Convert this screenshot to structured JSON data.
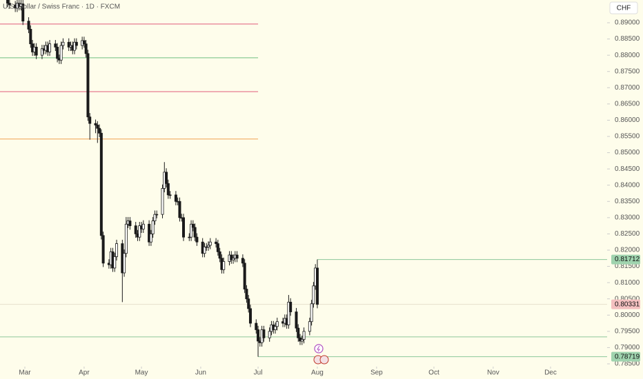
{
  "chart_data": {
    "type": "candlestick",
    "title": "U.S. Dollar / Swiss Franc · 1D · FXCM",
    "currency": "CHF",
    "background": "#fefdeb",
    "up_color": "#ffffff",
    "down_color": "#1a1a1a",
    "xlim": [
      47.0,
      364.6
    ],
    "xticks": [
      {
        "value": 60,
        "label": "Mar"
      },
      {
        "value": 91,
        "label": "Apr"
      },
      {
        "value": 121,
        "label": "May"
      },
      {
        "value": 152,
        "label": "Jun"
      },
      {
        "value": 182,
        "label": "Jul"
      },
      {
        "value": 213,
        "label": "Aug"
      },
      {
        "value": 244,
        "label": "Sep"
      },
      {
        "value": 274,
        "label": "Oct"
      },
      {
        "value": 305,
        "label": "Nov"
      },
      {
        "value": 335,
        "label": "Dec"
      }
    ],
    "ylim": [
      0.78415,
      0.897
    ],
    "yticks": [
      {
        "value": 0.89,
        "label": "0.89000"
      },
      {
        "value": 0.885,
        "label": "0.88500"
      },
      {
        "value": 0.88,
        "label": "0.88000"
      },
      {
        "value": 0.875,
        "label": "0.87500"
      },
      {
        "value": 0.87,
        "label": "0.87000"
      },
      {
        "value": 0.865,
        "label": "0.86500"
      },
      {
        "value": 0.86,
        "label": "0.86000"
      },
      {
        "value": 0.855,
        "label": "0.85500"
      },
      {
        "value": 0.85,
        "label": "0.85000"
      },
      {
        "value": 0.845,
        "label": "0.84500"
      },
      {
        "value": 0.84,
        "label": "0.84000"
      },
      {
        "value": 0.835,
        "label": "0.83500"
      },
      {
        "value": 0.83,
        "label": "0.83000"
      },
      {
        "value": 0.825,
        "label": "0.82500"
      },
      {
        "value": 0.82,
        "label": "0.82000"
      },
      {
        "value": 0.815,
        "label": "0.81500"
      },
      {
        "value": 0.81,
        "label": "0.81000"
      },
      {
        "value": 0.805,
        "label": "0.80500"
      },
      {
        "value": 0.8,
        "label": "0.80000"
      },
      {
        "value": 0.795,
        "label": "0.79500"
      },
      {
        "value": 0.79,
        "label": "0.79000"
      },
      {
        "value": 0.785,
        "label": "0.78500"
      }
    ],
    "x": [
      51,
      52,
      55,
      56,
      57,
      58,
      59,
      62,
      63,
      64,
      65,
      66,
      69,
      70,
      71,
      72,
      73,
      76,
      77,
      78,
      79,
      80,
      83,
      84,
      85,
      86,
      87,
      90,
      91,
      92,
      93,
      94,
      97,
      98,
      99,
      100,
      101,
      104,
      105,
      106,
      107,
      108,
      111,
      112,
      113,
      114,
      115,
      118,
      119,
      120,
      121,
      122,
      125,
      126,
      127,
      128,
      129,
      132,
      133,
      134,
      135,
      136,
      139,
      140,
      141,
      142,
      143,
      146,
      147,
      148,
      149,
      150,
      153,
      154,
      155,
      156,
      157,
      160,
      161,
      162,
      163,
      164,
      167,
      168,
      169,
      170,
      171,
      174,
      175,
      176,
      177,
      178,
      181,
      182,
      183,
      184,
      185,
      188,
      189,
      190,
      191,
      192,
      195,
      196,
      197,
      198,
      199,
      202,
      203,
      204,
      205,
      206,
      209,
      210,
      211,
      212,
      213
    ],
    "open": [
      0.897,
      0.896,
      0.8955,
      0.8945,
      0.896,
      0.895,
      0.8958,
      0.8905,
      0.888,
      0.8835,
      0.881,
      0.8825,
      0.88,
      0.882,
      0.8815,
      0.883,
      0.881,
      0.8835,
      0.8825,
      0.879,
      0.8785,
      0.883,
      0.884,
      0.8825,
      0.883,
      0.8815,
      0.884,
      0.883,
      0.8845,
      0.8835,
      0.8805,
      0.861,
      0.859,
      0.8585,
      0.8575,
      0.856,
      0.8245,
      0.816,
      0.8155,
      0.8195,
      0.8145,
      0.818,
      0.822,
      0.813,
      0.819,
      0.828,
      0.829,
      0.8275,
      0.825,
      0.824,
      0.8275,
      0.8265,
      0.828,
      0.8225,
      0.825,
      0.829,
      0.831,
      0.831,
      0.839,
      0.844,
      0.8405,
      0.837,
      0.837,
      0.835,
      0.835,
      0.83,
      0.83,
      0.824,
      0.824,
      0.828,
      0.827,
      0.824,
      0.8225,
      0.819,
      0.821,
      0.821,
      0.8215,
      0.8225,
      0.822,
      0.8195,
      0.8175,
      0.814,
      0.8165,
      0.8185,
      0.817,
      0.8175,
      0.8185,
      0.8175,
      0.816,
      0.808,
      0.805,
      0.802,
      0.7975,
      0.7955,
      0.792,
      0.7915,
      0.7955,
      0.793,
      0.795,
      0.797,
      0.7955,
      0.7965,
      0.798,
      0.7975,
      0.799,
      0.797,
      0.804,
      0.801,
      0.796,
      0.793,
      0.792,
      0.7925,
      0.795,
      0.798,
      0.8035,
      0.809,
      0.8145
    ],
    "high": [
      0.8982,
      0.8972,
      0.8967,
      0.8972,
      0.8972,
      0.897,
      0.897,
      0.8917,
      0.8892,
      0.8847,
      0.8837,
      0.8837,
      0.8832,
      0.8832,
      0.8842,
      0.8842,
      0.8847,
      0.8847,
      0.8837,
      0.8802,
      0.8842,
      0.8852,
      0.8852,
      0.8842,
      0.8842,
      0.8852,
      0.8852,
      0.8857,
      0.8857,
      0.8847,
      0.8817,
      0.8622,
      0.8602,
      0.8597,
      0.8587,
      0.8572,
      0.8257,
      0.8172,
      0.8207,
      0.8207,
      0.8192,
      0.8232,
      0.8232,
      0.8202,
      0.8302,
      0.8302,
      0.8302,
      0.8287,
      0.8262,
      0.8287,
      0.8287,
      0.8292,
      0.8292,
      0.8262,
      0.8302,
      0.8322,
      0.8322,
      0.8402,
      0.8471,
      0.8452,
      0.8417,
      0.8382,
      0.8382,
      0.8362,
      0.8362,
      0.8312,
      0.8312,
      0.8252,
      0.8292,
      0.8292,
      0.8282,
      0.8252,
      0.8237,
      0.8222,
      0.8222,
      0.8227,
      0.8237,
      0.8237,
      0.8232,
      0.8207,
      0.8187,
      0.8177,
      0.8197,
      0.8197,
      0.8187,
      0.8197,
      0.8197,
      0.8187,
      0.8172,
      0.8092,
      0.8062,
      0.8032,
      0.7987,
      0.7967,
      0.7932,
      0.7967,
      0.7967,
      0.7962,
      0.7982,
      0.7982,
      0.7977,
      0.7992,
      0.7992,
      0.8002,
      0.8002,
      0.8062,
      0.8052,
      0.8022,
      0.7972,
      0.7942,
      0.7937,
      0.7962,
      0.7992,
      0.8047,
      0.8102,
      0.8157,
      0.81712
    ],
    "low": [
      0.8948,
      0.8943,
      0.8933,
      0.8933,
      0.8938,
      0.8938,
      0.8893,
      0.8868,
      0.8823,
      0.8798,
      0.8798,
      0.8788,
      0.8788,
      0.8803,
      0.8803,
      0.8798,
      0.8798,
      0.8813,
      0.8778,
      0.8773,
      0.8773,
      0.8818,
      0.8813,
      0.8813,
      0.8803,
      0.8803,
      0.8818,
      0.8818,
      0.8823,
      0.8793,
      0.8598,
      0.854,
      0.856,
      0.853,
      0.8548,
      0.8233,
      0.8148,
      0.8143,
      0.8143,
      0.8133,
      0.8133,
      0.8168,
      0.804,
      0.8118,
      0.8178,
      0.8268,
      0.8263,
      0.8238,
      0.8228,
      0.8228,
      0.8253,
      0.8253,
      0.8213,
      0.8213,
      0.8238,
      0.8278,
      0.8298,
      0.8298,
      0.8378,
      0.8393,
      0.8358,
      0.8358,
      0.8338,
      0.8338,
      0.8288,
      0.8288,
      0.8228,
      0.8228,
      0.8228,
      0.8258,
      0.8228,
      0.8213,
      0.8178,
      0.8178,
      0.8198,
      0.8198,
      0.8203,
      0.8208,
      0.8183,
      0.8163,
      0.8128,
      0.8128,
      0.8153,
      0.8158,
      0.8158,
      0.8163,
      0.8163,
      0.8148,
      0.8068,
      0.8038,
      0.8008,
      0.7963,
      0.7943,
      0.78719,
      0.7903,
      0.7903,
      0.7918,
      0.7918,
      0.7938,
      0.7943,
      0.7943,
      0.7953,
      0.7963,
      0.7963,
      0.7958,
      0.7958,
      0.7998,
      0.7948,
      0.7918,
      0.7908,
      0.7908,
      0.7913,
      0.7938,
      0.7968,
      0.8023,
      0.8078,
      0.8021
    ],
    "close": [
      0.896,
      0.8955,
      0.8945,
      0.896,
      0.895,
      0.8958,
      0.8905,
      0.888,
      0.8835,
      0.881,
      0.8825,
      0.88,
      0.882,
      0.8815,
      0.883,
      0.881,
      0.8835,
      0.8825,
      0.879,
      0.8785,
      0.883,
      0.884,
      0.8825,
      0.883,
      0.8815,
      0.884,
      0.883,
      0.8845,
      0.8835,
      0.8805,
      0.861,
      0.859,
      0.8585,
      0.8575,
      0.856,
      0.8245,
      0.816,
      0.8155,
      0.8195,
      0.8145,
      0.818,
      0.822,
      0.813,
      0.819,
      0.828,
      0.829,
      0.8275,
      0.825,
      0.824,
      0.8275,
      0.8265,
      0.828,
      0.8225,
      0.825,
      0.829,
      0.831,
      0.831,
      0.839,
      0.844,
      0.8405,
      0.837,
      0.837,
      0.835,
      0.835,
      0.83,
      0.83,
      0.824,
      0.824,
      0.828,
      0.827,
      0.824,
      0.8225,
      0.819,
      0.821,
      0.821,
      0.8215,
      0.8225,
      0.822,
      0.8195,
      0.8175,
      0.814,
      0.8165,
      0.8185,
      0.817,
      0.8175,
      0.8185,
      0.8175,
      0.816,
      0.808,
      0.805,
      0.802,
      0.7975,
      0.7955,
      0.792,
      0.7915,
      0.7955,
      0.793,
      0.795,
      0.797,
      0.7955,
      0.7965,
      0.798,
      0.7975,
      0.799,
      0.797,
      0.804,
      0.801,
      0.796,
      0.793,
      0.792,
      0.7925,
      0.795,
      0.798,
      0.8035,
      0.809,
      0.8145,
      0.8033
    ],
    "levels": [
      {
        "value": 0.8896,
        "color": "#e05a7a",
        "to_x": 182
      },
      {
        "value": 0.8792,
        "color": "#6fbf7f",
        "to_x": 182
      },
      {
        "value": 0.8688,
        "color": "#e05a7a",
        "to_x": 182
      },
      {
        "value": 0.8542,
        "color": "#f0a050",
        "to_x": 182
      },
      {
        "value": 0.7933,
        "color": "#8cc79a",
        "to_x": 364.6
      }
    ],
    "price_tags": [
      {
        "value": 0.81712,
        "color": "#9fd3ae",
        "line": "#8cc79a",
        "from_x": 213
      },
      {
        "value": 0.80331,
        "color": "#f4c0c0",
        "line": "#e6e0cc",
        "from_x": 47.0
      },
      {
        "value": 0.78719,
        "color": "#9fd3ae",
        "line": "#8cc79a",
        "from_x": 182
      }
    ]
  }
}
